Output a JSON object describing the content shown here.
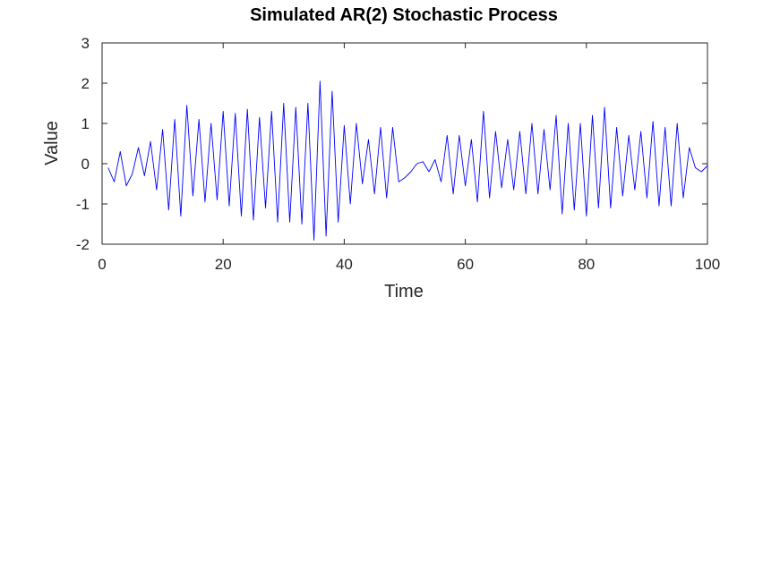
{
  "chart_data": {
    "type": "line",
    "title": "Simulated AR(2) Stochastic Process",
    "xlabel": "Time",
    "ylabel": "Value",
    "xlim": [
      0,
      100
    ],
    "ylim": [
      -2,
      3
    ],
    "xticks": [
      0,
      20,
      40,
      60,
      80,
      100
    ],
    "yticks": [
      -2,
      -1,
      0,
      1,
      2,
      3
    ],
    "grid": false,
    "series": [
      {
        "color": "#0000ff",
        "x": [
          1,
          2,
          3,
          4,
          5,
          6,
          7,
          8,
          9,
          10,
          11,
          12,
          13,
          14,
          15,
          16,
          17,
          18,
          19,
          20,
          21,
          22,
          23,
          24,
          25,
          26,
          27,
          28,
          29,
          30,
          31,
          32,
          33,
          34,
          35,
          36,
          37,
          38,
          39,
          40,
          41,
          42,
          43,
          44,
          45,
          46,
          47,
          48,
          49,
          50,
          51,
          52,
          53,
          54,
          55,
          56,
          57,
          58,
          59,
          60,
          61,
          62,
          63,
          64,
          65,
          66,
          67,
          68,
          69,
          70,
          71,
          72,
          73,
          74,
          75,
          76,
          77,
          78,
          79,
          80,
          81,
          82,
          83,
          84,
          85,
          86,
          87,
          88,
          89,
          90,
          91,
          92,
          93,
          94,
          95,
          96,
          97,
          98,
          99,
          100
        ],
        "y": [
          -0.1,
          -0.45,
          0.3,
          -0.55,
          -0.25,
          0.4,
          -0.3,
          0.55,
          -0.65,
          0.85,
          -1.15,
          1.1,
          -1.3,
          1.45,
          -0.8,
          1.1,
          -0.95,
          1.0,
          -0.9,
          1.3,
          -1.05,
          1.25,
          -1.3,
          1.35,
          -1.4,
          1.15,
          -1.1,
          1.3,
          -1.45,
          1.5,
          -1.45,
          1.4,
          -1.5,
          1.5,
          -1.9,
          2.05,
          -1.8,
          1.8,
          -1.45,
          0.95,
          -1.0,
          1.0,
          -0.5,
          0.6,
          -0.75,
          0.9,
          -0.85,
          0.9,
          -0.45,
          -0.35,
          -0.2,
          0.0,
          0.05,
          -0.2,
          0.1,
          -0.45,
          0.7,
          -0.75,
          0.7,
          -0.55,
          0.6,
          -0.95,
          1.3,
          -0.85,
          0.8,
          -0.6,
          0.6,
          -0.65,
          0.8,
          -0.75,
          1.0,
          -0.75,
          0.85,
          -0.65,
          1.2,
          -1.25,
          1.0,
          -1.15,
          1.0,
          -1.3,
          1.2,
          -1.1,
          1.4,
          -1.1,
          0.9,
          -0.8,
          0.7,
          -0.65,
          0.8,
          -0.85,
          1.05,
          -1.05,
          0.9,
          -1.05,
          1.0,
          -0.85,
          0.4,
          -0.1,
          -0.2,
          -0.05
        ]
      }
    ]
  }
}
